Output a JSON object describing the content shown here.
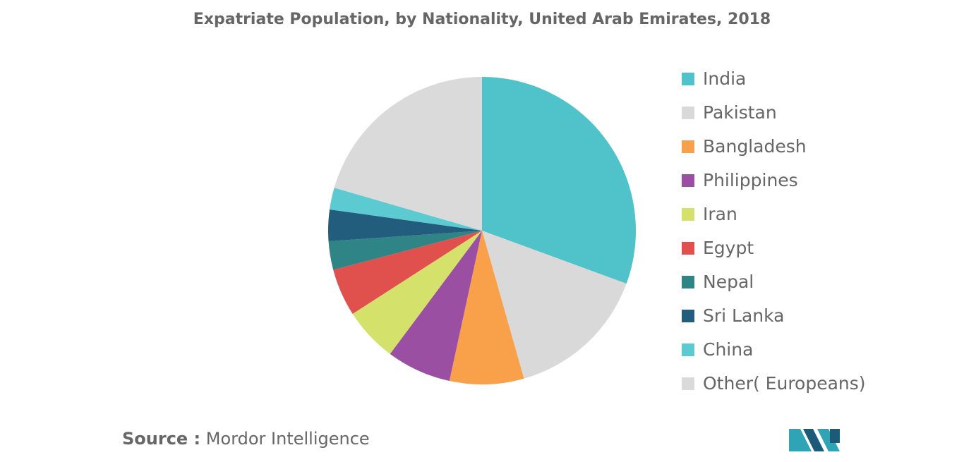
{
  "chart_data": {
    "type": "pie",
    "title": "Expatriate Population, by Nationality, United Arab Emirates, 2018",
    "categories": [
      "India",
      "Pakistan",
      "Bangladesh",
      "Philippines",
      "Iran",
      "Egypt",
      "Nepal",
      "Sri Lanka",
      "China",
      "Other( Europeans)"
    ],
    "values": [
      30.6,
      15.0,
      7.8,
      6.8,
      5.7,
      5.0,
      3.0,
      3.3,
      2.3,
      20.5
    ],
    "colors": [
      "#4fc3c9",
      "#d9d9d9",
      "#f9a04b",
      "#9b4fa3",
      "#d4e26b",
      "#e0504c",
      "#2f8585",
      "#235d7e",
      "#5ccbd1",
      "#dadada"
    ],
    "legend": "right"
  },
  "source_label": "Source :",
  "source": "Mordor Intelligence"
}
